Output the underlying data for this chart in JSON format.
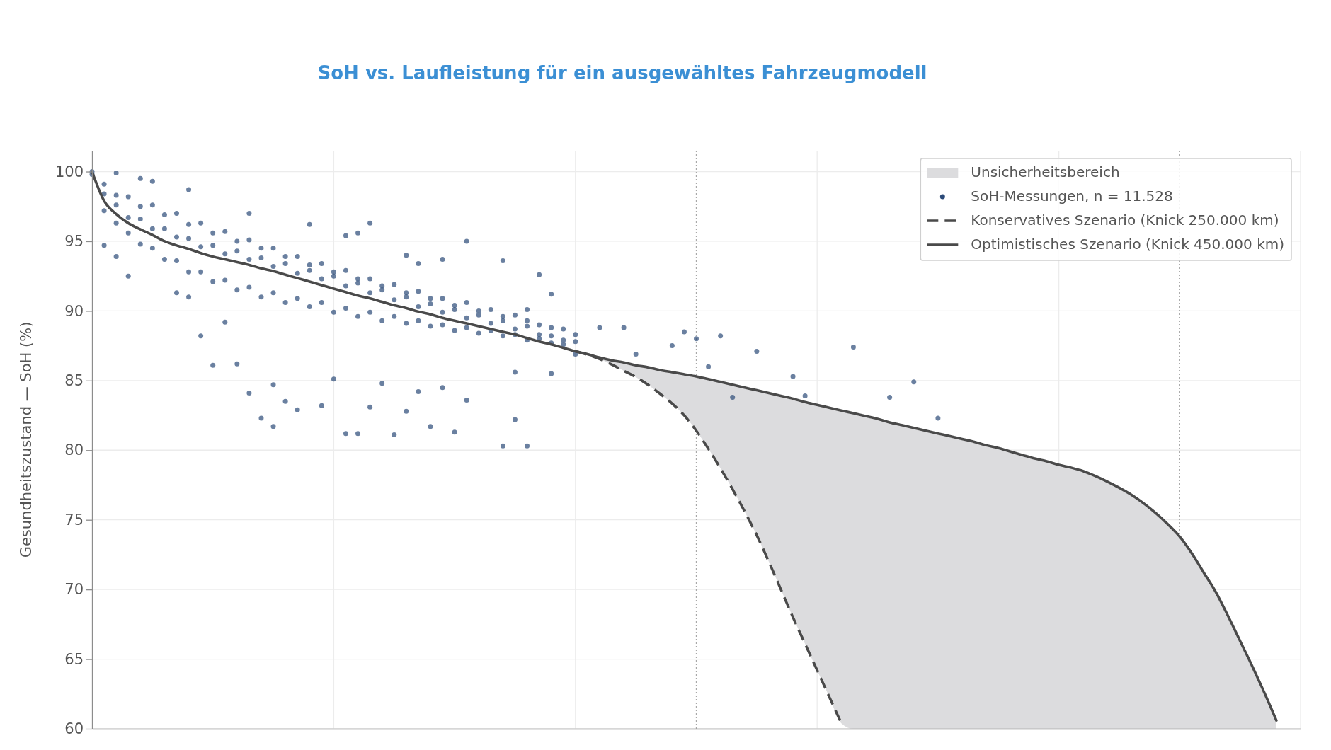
{
  "chart_data": {
    "type": "scatter",
    "title": "SoH vs. Laufleistung für ein ausgewähltes Fahrzeugmodell",
    "ylabel": "Gesundheitszustand — SoH (%)",
    "categories": [
      null,
      null,
      null,
      null,
      null,
      null,
      null,
      null,
      null,
      null,
      null,
      null,
      null,
      null,
      null,
      null,
      null,
      null,
      null,
      null,
      null,
      null,
      null,
      null,
      null,
      null,
      null,
      null,
      null,
      null,
      null,
      null,
      null,
      null,
      null,
      null,
      null,
      null,
      null,
      null,
      null,
      null,
      null,
      null,
      null,
      null,
      null,
      null,
      null,
      null,
      null,
      null,
      null,
      null,
      null,
      null,
      null,
      null,
      null,
      null,
      null,
      null,
      null,
      null,
      null,
      null,
      null,
      null,
      null,
      null,
      null,
      null,
      null,
      null,
      null,
      null,
      null,
      null,
      null,
      null,
      null,
      null,
      null,
      null,
      null,
      null,
      null,
      null,
      null,
      null,
      null,
      null,
      null,
      null,
      null,
      null,
      null,
      null,
      null,
      null,
      null
    ],
    "ylim": [
      60,
      101.5
    ],
    "yticks": [
      60,
      65,
      70,
      75,
      80,
      85,
      90,
      95,
      100
    ],
    "grid": true,
    "legend": "top right",
    "series": [
      {
        "name": "Unsicherheitsbereich",
        "type": "area",
        "color": "#dcdcde",
        "values": [
          null,
          null,
          null,
          null,
          null,
          null,
          null,
          null,
          null,
          null,
          null,
          null,
          null,
          null,
          null,
          null,
          null,
          null,
          null,
          null,
          null,
          null,
          null,
          null,
          null,
          null,
          null,
          null,
          null,
          null,
          null,
          null,
          null,
          null,
          null,
          null,
          null,
          null,
          null,
          null,
          null,
          null,
          null,
          null,
          null,
          null,
          null,
          null,
          null,
          null,
          null,
          null,
          null,
          null,
          null,
          null,
          null,
          null,
          null,
          null,
          null,
          null,
          null,
          null,
          null,
          null,
          null,
          null,
          null,
          null,
          null,
          null,
          null,
          null,
          null,
          null,
          null,
          null,
          null,
          null,
          null,
          null,
          null,
          null,
          null,
          null,
          null,
          null,
          null,
          null,
          null,
          null,
          null,
          null,
          null,
          null,
          null,
          null,
          null,
          null,
          null
        ],
        "lower": [
          null,
          null,
          null,
          null,
          null,
          null,
          null,
          null,
          null,
          null,
          null,
          null,
          null,
          null,
          null,
          null,
          null,
          null,
          null,
          null,
          null,
          null,
          null,
          null,
          null,
          null,
          null,
          null,
          null,
          null,
          null,
          null,
          null,
          null,
          null,
          null,
          null,
          null,
          null,
          null,
          87.1,
          86.85,
          86.55,
          86.15,
          85.7,
          85.25,
          84.7,
          84.05,
          83.35,
          82.5,
          81.4,
          80.1,
          78.7,
          77.2,
          75.6,
          73.9,
          72.0,
          70.0,
          68.0,
          66.1,
          64.2,
          62.3,
          60.4,
          60,
          60,
          60,
          60,
          60,
          60,
          60,
          60,
          60,
          60,
          60,
          60,
          60,
          60,
          60,
          60,
          60,
          60,
          60,
          60,
          60,
          60,
          60,
          60,
          60,
          60,
          60,
          60,
          60,
          60,
          60,
          60,
          60,
          60,
          60,
          60,
          null,
          null
        ],
        "upper": [
          null,
          null,
          null,
          null,
          null,
          null,
          null,
          null,
          null,
          null,
          null,
          null,
          null,
          null,
          null,
          null,
          null,
          null,
          null,
          null,
          null,
          null,
          null,
          null,
          null,
          null,
          null,
          null,
          null,
          null,
          null,
          null,
          null,
          null,
          null,
          null,
          null,
          null,
          null,
          null,
          87.1,
          86.9,
          86.65,
          86.45,
          86.3,
          86.1,
          85.95,
          85.75,
          85.6,
          85.45,
          85.3,
          85.1,
          84.9,
          84.7,
          84.5,
          84.3,
          84.1,
          83.9,
          83.7,
          83.45,
          83.25,
          83.05,
          82.85,
          82.65,
          82.45,
          82.25,
          82.0,
          81.8,
          81.6,
          81.4,
          81.2,
          81.0,
          80.8,
          80.6,
          80.35,
          80.15,
          79.9,
          79.65,
          79.4,
          79.2,
          78.95,
          78.75,
          78.5,
          78.15,
          77.75,
          77.3,
          76.8,
          76.2,
          75.5,
          74.7,
          73.8,
          72.6,
          71.2,
          69.8,
          68.1,
          66.3,
          64.5,
          62.6,
          60.6,
          null,
          null
        ]
      },
      {
        "name": "SoH-Messungen, n = 11.528",
        "color": "#2b4a78",
        "marker": "circle",
        "values": [
          100.0,
          99.1,
          98.3,
          98.2,
          97.5,
          97.6,
          96.9,
          97.0,
          96.2,
          96.3,
          95.6,
          95.7,
          95.0,
          95.1,
          94.5,
          94.5,
          93.9,
          93.9,
          93.3,
          93.4,
          92.8,
          92.9,
          92.3,
          92.3,
          91.8,
          91.9,
          91.3,
          91.4,
          90.9,
          90.9,
          90.4,
          90.6,
          90.0,
          90.1,
          89.6,
          89.7,
          89.3,
          89.0,
          88.8,
          88.7,
          88.3,
          null,
          null,
          null,
          null,
          null,
          null,
          null,
          null,
          null,
          null,
          null,
          null,
          null,
          null,
          null,
          null,
          null,
          null,
          null,
          null,
          null,
          null,
          null,
          null,
          null,
          null,
          null,
          null,
          null,
          null,
          null,
          null,
          null,
          null,
          null,
          null,
          null,
          null,
          null,
          null,
          null,
          null,
          null,
          null,
          null,
          null,
          null,
          null,
          null,
          null,
          null,
          null,
          null,
          null,
          null,
          null,
          null,
          null,
          null,
          null
        ]
      },
      {
        "color": "#2b4a78",
        "marker": "circle",
        "values": [
          99.8,
          98.4,
          97.6,
          96.7,
          96.6,
          95.9,
          95.9,
          95.3,
          95.2,
          94.6,
          94.7,
          94.1,
          94.3,
          93.7,
          93.8,
          93.2,
          93.4,
          92.7,
          92.9,
          92.3,
          92.5,
          91.8,
          92.0,
          91.3,
          91.5,
          90.8,
          91.0,
          90.3,
          90.5,
          89.9,
          90.1,
          89.5,
          89.7,
          89.1,
          89.3,
          88.7,
          88.9,
          88.3,
          88.2,
          87.9,
          87.8,
          null,
          null,
          null,
          null,
          null,
          null,
          null,
          null,
          null,
          null,
          null,
          null,
          null,
          null,
          null,
          null,
          null,
          null,
          null,
          null,
          null,
          null,
          null,
          null,
          null,
          null,
          null,
          null,
          null,
          null,
          null,
          null,
          null,
          null,
          null,
          null,
          null,
          null,
          null,
          null,
          null,
          null,
          null,
          null,
          null,
          null,
          null,
          null,
          null,
          null,
          null,
          null,
          null,
          null,
          null,
          null,
          null,
          null,
          null,
          null
        ]
      },
      {
        "color": "#2b4a78",
        "marker": "circle",
        "values": [
          null,
          97.2,
          96.3,
          95.6,
          94.8,
          94.5,
          93.7,
          93.6,
          92.8,
          92.8,
          92.1,
          92.2,
          91.5,
          91.7,
          91.0,
          91.3,
          90.6,
          90.9,
          90.3,
          90.6,
          89.9,
          90.2,
          89.6,
          89.9,
          89.3,
          89.6,
          89.1,
          89.3,
          88.9,
          89.0,
          88.6,
          88.8,
          88.4,
          88.6,
          88.2,
          88.3,
          87.9,
          88.0,
          87.7,
          87.6,
          86.9,
          null,
          null,
          null,
          null,
          null,
          null,
          null,
          null,
          null,
          null,
          null,
          null,
          null,
          null,
          null,
          null,
          null,
          null,
          null,
          null,
          null,
          null,
          null,
          null,
          null,
          null,
          null,
          null,
          null,
          null,
          null,
          null,
          null,
          null,
          null,
          null,
          null,
          null,
          null,
          null,
          null,
          null,
          null,
          null,
          null,
          null,
          null,
          null,
          null,
          null,
          null,
          null,
          null,
          null,
          null,
          null,
          null,
          null,
          null,
          null
        ]
      },
      {
        "color": "#2b4a78",
        "marker": "circle",
        "values": [
          null,
          94.7,
          93.9,
          92.5,
          null,
          null,
          null,
          91.3,
          91.0,
          88.2,
          86.1,
          89.2,
          86.2,
          84.1,
          82.3,
          84.7,
          83.5,
          82.9,
          null,
          83.2,
          85.1,
          81.2,
          81.2,
          83.1,
          84.8,
          81.1,
          82.8,
          84.2,
          81.7,
          84.5,
          81.3,
          83.6,
          null,
          null,
          80.3,
          82.2,
          80.3,
          null,
          85.5,
          null,
          null,
          null,
          null,
          null,
          null,
          86.9,
          null,
          null,
          87.5,
          null,
          null,
          86.0,
          null,
          83.8,
          null,
          87.1,
          null,
          null,
          85.3,
          83.9,
          null,
          null,
          null,
          87.4,
          null,
          null,
          83.8,
          null,
          84.9,
          null,
          82.3,
          null,
          null,
          null,
          null,
          null,
          null,
          null,
          null,
          null,
          null,
          null,
          null,
          null,
          null,
          null,
          null,
          null,
          null,
          null,
          null,
          null,
          null,
          null,
          null,
          null,
          null,
          null,
          null,
          null,
          null
        ]
      },
      {
        "color": "#2b4a78",
        "marker": "circle",
        "values": [
          null,
          null,
          99.9,
          null,
          99.5,
          99.3,
          null,
          null,
          98.7,
          null,
          null,
          null,
          null,
          97.0,
          null,
          81.7,
          null,
          null,
          96.2,
          null,
          null,
          95.4,
          95.6,
          96.3,
          null,
          null,
          94.0,
          93.4,
          null,
          93.7,
          null,
          95.0,
          null,
          null,
          93.6,
          85.6,
          90.1,
          92.6,
          91.2,
          null,
          null,
          null,
          88.8,
          null,
          88.8,
          null,
          null,
          null,
          null,
          88.5,
          88.0,
          null,
          88.2,
          null,
          null,
          null,
          null,
          null,
          null,
          null,
          null,
          null,
          null,
          null,
          null,
          null,
          null,
          null,
          null,
          null,
          null,
          null,
          null,
          null,
          null,
          null,
          null,
          null,
          null,
          null,
          null,
          null,
          null,
          null,
          null,
          null,
          null,
          null,
          null,
          null,
          null,
          null,
          null,
          null,
          null,
          null,
          null,
          null,
          null,
          null,
          null
        ]
      },
      {
        "name": "Konservatives Szenario (Knick 250.000 km)",
        "type": "line",
        "color": "#4a4a4a",
        "line_style": "dashed",
        "values": [
          null,
          null,
          null,
          null,
          null,
          null,
          null,
          null,
          null,
          null,
          null,
          null,
          null,
          null,
          null,
          null,
          null,
          null,
          null,
          null,
          null,
          null,
          null,
          null,
          null,
          null,
          null,
          null,
          null,
          null,
          null,
          null,
          null,
          null,
          null,
          null,
          null,
          null,
          null,
          null,
          87.1,
          86.85,
          86.55,
          86.15,
          85.7,
          85.25,
          84.7,
          84.05,
          83.35,
          82.5,
          81.4,
          80.1,
          78.7,
          77.2,
          75.6,
          73.9,
          72.0,
          70.0,
          68.0,
          66.1,
          64.2,
          62.3,
          60.4,
          null,
          null,
          null,
          null,
          null,
          null,
          null,
          null,
          null,
          null,
          null,
          null,
          null,
          null,
          null,
          null,
          null,
          null,
          null,
          null,
          null,
          null,
          null,
          null,
          null,
          null,
          null,
          null,
          null,
          null,
          null,
          null,
          null,
          null,
          null,
          null,
          null,
          null
        ]
      },
      {
        "name": "Optimistisches Szenario (Knick 450.000 km)",
        "type": "line",
        "color": "#4a4a4a",
        "line_style": "solid",
        "values": [
          100,
          97.9,
          96.95,
          96.3,
          95.85,
          95.45,
          95.0,
          94.7,
          94.45,
          94.15,
          93.9,
          93.7,
          93.5,
          93.3,
          93.05,
          92.85,
          92.6,
          92.35,
          92.1,
          91.85,
          91.6,
          91.35,
          91.1,
          90.9,
          90.65,
          90.4,
          90.2,
          89.95,
          89.75,
          89.5,
          89.3,
          89.1,
          88.9,
          88.7,
          88.5,
          88.3,
          88.05,
          87.8,
          87.6,
          87.35,
          87.1,
          86.9,
          86.65,
          86.45,
          86.3,
          86.1,
          85.95,
          85.75,
          85.6,
          85.45,
          85.3,
          85.1,
          84.9,
          84.7,
          84.5,
          84.3,
          84.1,
          83.9,
          83.7,
          83.45,
          83.25,
          83.05,
          82.85,
          82.65,
          82.45,
          82.25,
          82.0,
          81.8,
          81.6,
          81.4,
          81.2,
          81.0,
          80.8,
          80.6,
          80.35,
          80.15,
          79.9,
          79.65,
          79.4,
          79.2,
          78.95,
          78.75,
          78.5,
          78.15,
          77.75,
          77.3,
          76.8,
          76.2,
          75.5,
          74.7,
          73.8,
          72.6,
          71.2,
          69.8,
          68.1,
          66.3,
          64.5,
          62.6,
          60.6,
          null,
          null
        ]
      }
    ]
  }
}
